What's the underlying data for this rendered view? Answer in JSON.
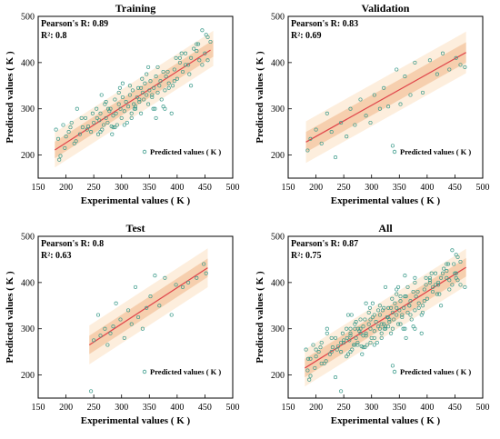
{
  "chart_data": [
    {
      "type": "scatter",
      "title": "Training",
      "xlabel": "Experimental values ( K )",
      "ylabel": "Predicted values ( K )",
      "xlim": [
        150,
        500
      ],
      "ylim": [
        150,
        500
      ],
      "xticks": [
        150,
        200,
        250,
        300,
        350,
        400,
        450,
        500
      ],
      "yticks": [
        200,
        300,
        400,
        500
      ],
      "stats": {
        "r_label": "Pearson's R: 0.89",
        "r2_label": "R²: 0.8"
      },
      "legend": "Predicted values ( K )",
      "legend_position": "lower-right",
      "fit": {
        "x": [
          180,
          460
        ],
        "y": [
          211,
          427
        ]
      },
      "band_inner": 18,
      "band_outer": 38,
      "x_range": [
        180,
        465
      ],
      "series": [
        {
          "name": "Predicted values ( K )",
          "x": [
            182,
            186,
            190,
            195,
            200,
            205,
            210,
            215,
            220,
            225,
            230,
            235,
            240,
            245,
            250,
            255,
            258,
            260,
            262,
            265,
            268,
            270,
            272,
            275,
            278,
            280,
            282,
            285,
            288,
            290,
            292,
            295,
            298,
            300,
            302,
            305,
            308,
            310,
            312,
            315,
            318,
            320,
            322,
            325,
            328,
            330,
            332,
            335,
            338,
            340,
            342,
            345,
            348,
            350,
            352,
            355,
            358,
            360,
            362,
            365,
            368,
            370,
            372,
            375,
            378,
            380,
            385,
            390,
            395,
            400,
            405,
            410,
            415,
            420,
            425,
            430,
            435,
            440,
            445,
            450,
            455,
            460,
            188,
            198,
            208,
            218,
            228,
            238,
            248,
            262,
            272,
            285,
            295,
            305,
            315,
            325,
            335,
            345,
            355,
            365,
            375,
            385,
            395,
            405,
            415,
            425,
            435,
            445,
            455,
            264,
            276,
            288,
            302,
            318,
            332,
            348,
            362,
            378,
            392,
            408,
            422,
            438,
            452,
            256,
            283,
            297,
            323,
            337,
            357,
            383,
            398
          ],
          "y": [
            255,
            235,
            198,
            265,
            240,
            250,
            270,
            225,
            300,
            245,
            260,
            280,
            262,
            250,
            270,
            300,
            245,
            275,
            290,
            255,
            265,
            310,
            280,
            270,
            295,
            300,
            262,
            285,
            320,
            290,
            265,
            310,
            300,
            280,
            325,
            295,
            315,
            270,
            305,
            330,
            290,
            340,
            310,
            300,
            325,
            345,
            315,
            290,
            335,
            320,
            355,
            330,
            310,
            340,
            360,
            325,
            345,
            300,
            370,
            335,
            350,
            360,
            320,
            380,
            340,
            370,
            355,
            290,
            385,
            365,
            400,
            380,
            420,
            395,
            410,
            430,
            440,
            405,
            470,
            420,
            455,
            445,
            190,
            215,
            260,
            230,
            280,
            255,
            290,
            250,
            315,
            260,
            335,
            265,
            350,
            305,
            345,
            375,
            330,
            390,
            305,
            345,
            360,
            410,
            395,
            350,
            425,
            395,
            405,
            330,
            300,
            260,
            355,
            280,
            320,
            390,
            280,
            300,
            350,
            420,
            375,
            440,
            460,
            280,
            245,
            345,
            300,
            365,
            300,
            380,
            410
          ]
        }
      ]
    },
    {
      "type": "scatter",
      "title": "Validation",
      "xlabel": "Experimental values ( K )",
      "ylabel": "Predicted values ( K )",
      "xlim": [
        150,
        500
      ],
      "ylim": [
        150,
        500
      ],
      "xticks": [
        150,
        200,
        250,
        300,
        350,
        400,
        450,
        500
      ],
      "yticks": [
        200,
        300,
        400,
        500
      ],
      "stats": {
        "r_label": "Pearson's R: 0.83",
        "r2_label": "R²: 0.69"
      },
      "legend": "Predicted values ( K )",
      "legend_position": "lower-right",
      "fit": {
        "x": [
          182,
          470
        ],
        "y": [
          228,
          422
        ]
      },
      "band_inner": 22,
      "band_outer": 45,
      "x_range": [
        182,
        470
      ],
      "series": [
        {
          "name": "Predicted values ( K )",
          "x": [
            185,
            190,
            200,
            210,
            220,
            228,
            235,
            245,
            255,
            262,
            270,
            280,
            290,
            298,
            305,
            315,
            322,
            330,
            338,
            345,
            352,
            360,
            370,
            378,
            392,
            405,
            418,
            428,
            440,
            452,
            460,
            468
          ],
          "y": [
            210,
            235,
            255,
            225,
            290,
            250,
            195,
            270,
            240,
            300,
            265,
            320,
            285,
            270,
            330,
            300,
            345,
            305,
            220,
            385,
            310,
            370,
            330,
            400,
            335,
            405,
            375,
            420,
            385,
            410,
            395,
            390
          ]
        }
      ]
    },
    {
      "type": "scatter",
      "title": "Test",
      "xlabel": "Experimental values ( K )",
      "ylabel": "Predicted values ( K )",
      "xlim": [
        150,
        500
      ],
      "ylim": [
        150,
        500
      ],
      "xticks": [
        150,
        200,
        250,
        300,
        350,
        400,
        450,
        500
      ],
      "yticks": [
        200,
        300,
        400,
        500
      ],
      "stats": {
        "r_label": "Pearson's R: 0.8",
        "r2_label": "R²: 0.63"
      },
      "legend": "Predicted values ( K )",
      "legend_position": "lower-right",
      "fit": {
        "x": [
          242,
          455
        ],
        "y": [
          265,
          432
        ]
      },
      "band_inner": 20,
      "band_outer": 42,
      "x_range": [
        242,
        455
      ],
      "series": [
        {
          "name": "Predicted values ( K )",
          "x": [
            245,
            250,
            258,
            262,
            270,
            275,
            280,
            285,
            290,
            298,
            305,
            312,
            318,
            325,
            330,
            338,
            345,
            352,
            360,
            368,
            378,
            390,
            398,
            410,
            420,
            435,
            448,
            452
          ],
          "y": [
            165,
            275,
            330,
            285,
            300,
            265,
            290,
            305,
            355,
            320,
            280,
            340,
            310,
            390,
            325,
            300,
            345,
            370,
            415,
            350,
            410,
            330,
            395,
            390,
            400,
            410,
            440,
            420
          ]
        }
      ]
    },
    {
      "type": "scatter",
      "title": "All",
      "xlabel": "Experimental values ( K )",
      "ylabel": "Predicted values ( K )",
      "xlim": [
        150,
        500
      ],
      "ylim": [
        150,
        500
      ],
      "xticks": [
        150,
        200,
        250,
        300,
        350,
        400,
        450,
        500
      ],
      "yticks": [
        200,
        300,
        400,
        500
      ],
      "stats": {
        "r_label": "Pearson's R: 0.87",
        "r2_label": "R²: 0.75"
      },
      "legend": "Predicted values ( K )",
      "legend_position": "lower-right",
      "fit": {
        "x": [
          180,
          470
        ],
        "y": [
          215,
          433
        ]
      },
      "band_inner": 20,
      "band_outer": 40,
      "x_range": [
        180,
        470
      ],
      "series": [
        {
          "name": "Predicted values ( K )",
          "x": [
            182,
            186,
            190,
            195,
            200,
            205,
            210,
            215,
            220,
            225,
            230,
            235,
            240,
            245,
            250,
            255,
            258,
            260,
            262,
            265,
            268,
            270,
            272,
            275,
            278,
            280,
            282,
            285,
            288,
            290,
            292,
            295,
            298,
            300,
            302,
            305,
            308,
            310,
            312,
            315,
            318,
            320,
            322,
            325,
            328,
            330,
            332,
            335,
            338,
            340,
            342,
            345,
            348,
            350,
            352,
            355,
            358,
            360,
            362,
            365,
            368,
            370,
            372,
            375,
            378,
            380,
            385,
            390,
            395,
            400,
            405,
            410,
            415,
            420,
            425,
            430,
            435,
            440,
            445,
            450,
            455,
            460,
            188,
            198,
            208,
            218,
            228,
            238,
            248,
            262,
            272,
            285,
            295,
            305,
            315,
            325,
            335,
            345,
            355,
            365,
            375,
            385,
            395,
            405,
            415,
            425,
            435,
            445,
            455,
            264,
            276,
            288,
            302,
            318,
            332,
            348,
            362,
            378,
            392,
            408,
            422,
            438,
            452,
            256,
            283,
            297,
            323,
            337,
            357,
            383,
            398,
            185,
            190,
            200,
            210,
            220,
            228,
            235,
            245,
            255,
            262,
            270,
            280,
            290,
            298,
            305,
            315,
            322,
            330,
            338,
            345,
            352,
            360,
            370,
            378,
            392,
            405,
            418,
            428,
            440,
            452,
            460,
            468,
            245,
            250,
            258,
            262,
            270,
            275,
            280,
            285,
            290,
            298,
            305,
            312,
            318,
            325,
            330,
            338,
            345,
            352,
            360,
            368,
            378,
            390,
            398,
            410,
            420,
            435,
            448,
            452
          ],
          "y": [
            255,
            235,
            198,
            265,
            240,
            250,
            270,
            225,
            300,
            245,
            260,
            280,
            262,
            250,
            270,
            300,
            245,
            275,
            290,
            255,
            265,
            310,
            280,
            270,
            295,
            300,
            262,
            285,
            320,
            290,
            265,
            310,
            300,
            280,
            325,
            295,
            315,
            270,
            305,
            330,
            290,
            340,
            310,
            300,
            325,
            345,
            315,
            290,
            335,
            320,
            355,
            330,
            310,
            340,
            360,
            325,
            345,
            300,
            370,
            335,
            350,
            360,
            320,
            380,
            340,
            370,
            355,
            290,
            385,
            365,
            400,
            380,
            420,
            395,
            410,
            430,
            440,
            405,
            470,
            420,
            455,
            445,
            190,
            215,
            260,
            230,
            280,
            255,
            290,
            250,
            315,
            260,
            335,
            265,
            350,
            305,
            345,
            375,
            330,
            390,
            305,
            345,
            360,
            410,
            395,
            350,
            425,
            395,
            405,
            330,
            300,
            260,
            355,
            280,
            320,
            390,
            280,
            300,
            350,
            420,
            375,
            440,
            460,
            280,
            245,
            345,
            300,
            365,
            300,
            380,
            410,
            210,
            235,
            255,
            225,
            290,
            250,
            195,
            270,
            240,
            300,
            265,
            320,
            285,
            270,
            330,
            300,
            345,
            305,
            220,
            385,
            310,
            370,
            330,
            400,
            335,
            405,
            375,
            420,
            385,
            410,
            395,
            390,
            165,
            275,
            330,
            285,
            300,
            265,
            290,
            305,
            355,
            320,
            280,
            340,
            310,
            390,
            325,
            300,
            345,
            370,
            415,
            350,
            410,
            330,
            395,
            390,
            400,
            410,
            440,
            420
          ]
        }
      ]
    }
  ],
  "colors": {
    "point_stroke": "#3a9a8a",
    "fit_line": "#e0454a",
    "band_inner": "#f6cfae",
    "band_outer": "#fdeedd"
  }
}
